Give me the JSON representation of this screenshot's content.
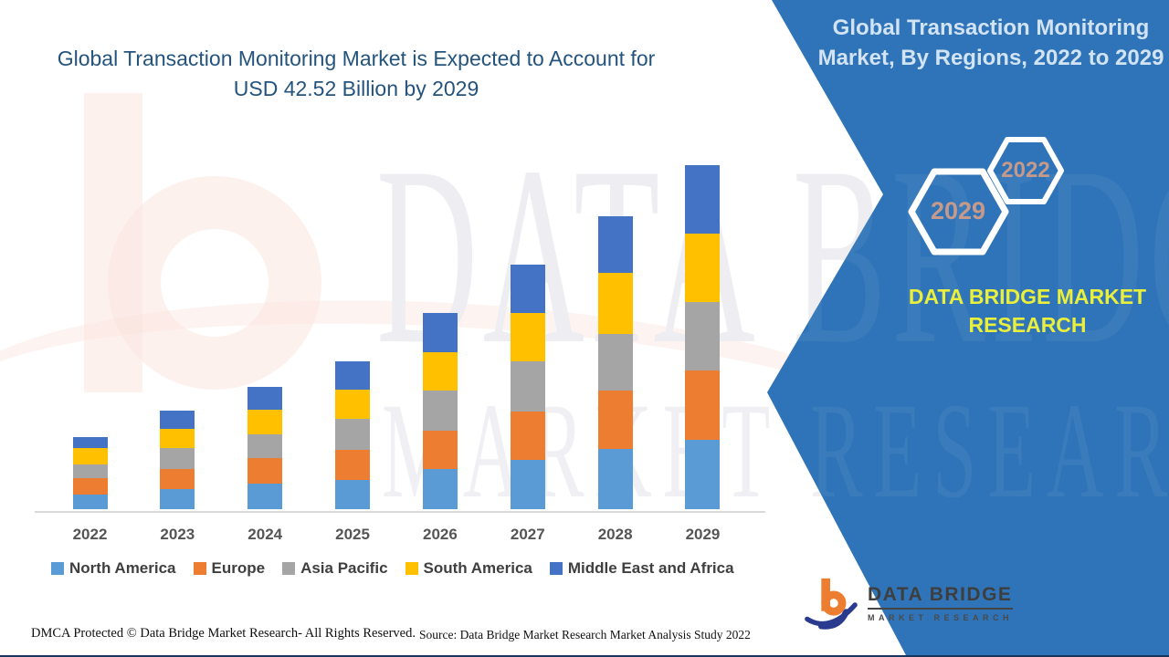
{
  "page": {
    "background": "#FFFFFF"
  },
  "header": {
    "title_line1": "Global Transaction Monitoring Market is Expected to Account for",
    "title_line2": "USD 42.52 Billion by 2029",
    "color": "#24547E"
  },
  "chart_data": {
    "type": "bar",
    "stacked": true,
    "title": "Global Transaction Monitoring Market, By Regions, 2022 to 2029",
    "unit": "USD Billion",
    "y_axis": "hidden",
    "legend_position": "bottom",
    "categories": [
      "2022",
      "2023",
      "2024",
      "2025",
      "2026",
      "2027",
      "2028",
      "2029"
    ],
    "series": [
      {
        "name": "North America",
        "color": "#5B9BD5",
        "values": [
          1.8,
          2.4,
          3.1,
          3.6,
          4.9,
          6.1,
          7.4,
          8.6
        ]
      },
      {
        "name": "Europe",
        "color": "#ED7D31",
        "values": [
          1.95,
          2.5,
          3.2,
          3.7,
          4.8,
          5.9,
          7.3,
          8.5
        ]
      },
      {
        "name": "Asia Pacific",
        "color": "#A5A5A5",
        "values": [
          1.8,
          2.6,
          2.9,
          3.8,
          5.0,
          6.3,
          7.0,
          8.5
        ]
      },
      {
        "name": "South America",
        "color": "#FFC000",
        "values": [
          1.95,
          2.45,
          3.1,
          3.7,
          4.7,
          6.0,
          7.5,
          8.5
        ]
      },
      {
        "name": "Middle East and Africa",
        "color": "#4472C4",
        "values": [
          1.45,
          2.2,
          2.8,
          3.5,
          4.9,
          5.9,
          7.1,
          8.42
        ]
      }
    ],
    "totals": [
      8.95,
      12.15,
      15.1,
      18.3,
      24.3,
      30.2,
      36.3,
      42.52
    ],
    "annotation": "USD 42.52 Billion by 2029"
  },
  "side_panel": {
    "background": "#2F74B8",
    "title_line1": "Global Transaction Monitoring",
    "title_line2": "Market, By Regions, 2022 to 2029",
    "hexagon_large_year": "2029",
    "hexagon_small_year": "2022",
    "hexagon_year_color": "#C69A8B",
    "brand_line1": "DATA BRIDGE MARKET",
    "brand_line2": "RESEARCH",
    "brand_color": "#E9EF3C",
    "logo_title": "DATA BRIDGE",
    "logo_subtitle": "MARKET RESEARCH"
  },
  "watermark": {
    "line1": "DATA BRIDGE",
    "line2": "MARKET RESEARCH"
  },
  "footer": {
    "dmca": "DMCA Protected © Data Bridge Market Research- All Rights Reserved.",
    "source": "Source: Data Bridge Market Research Market Analysis Study 2022"
  }
}
